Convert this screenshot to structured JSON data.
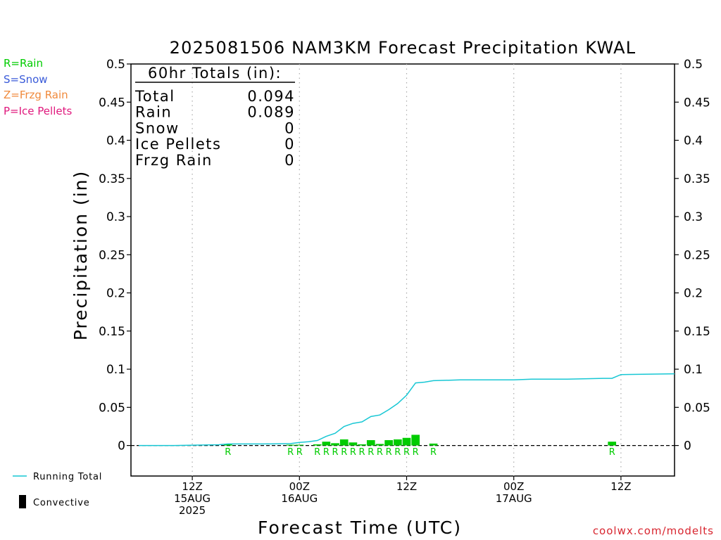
{
  "colors": {
    "rain": "#00cc00",
    "snow": "#3a5bd9",
    "frzg_rain": "#f08a3c",
    "ice_pellets": "#e0197d",
    "running_total": "#17c7d4",
    "convective": "#000000",
    "grid": "#aaaaaa",
    "credit": "#d8252f"
  },
  "precip_types": [
    {
      "label": "R=Rain",
      "color_key": "rain"
    },
    {
      "label": "S=Snow",
      "color_key": "snow"
    },
    {
      "label": "Z=Frzg Rain",
      "color_key": "frzg_rain"
    },
    {
      "label": "P=Ice Pellets",
      "color_key": "ice_pellets"
    }
  ],
  "legend": {
    "running_total": "Running Total",
    "convective": "Convective"
  },
  "totals_box": {
    "header": "60hr Totals (in):",
    "rows": [
      {
        "label": "Total",
        "value": "0.094"
      },
      {
        "label": "Rain",
        "value": "0.089"
      },
      {
        "label": "Snow",
        "value": "0"
      },
      {
        "label": "Ice Pellets",
        "value": "0"
      },
      {
        "label": "Frzg Rain",
        "value": "0"
      }
    ]
  },
  "credit": "coolwx.com/modelts",
  "chart_data": {
    "type": "bar",
    "title": "2025081506 NAM3KM Forecast Precipitation KWAL",
    "xlabel": "Forecast Time (UTC)",
    "ylabel": "Precipitation (in)",
    "ylim": [
      -0.04,
      0.5
    ],
    "xlim": [
      0,
      60
    ],
    "yticks": [
      0,
      0.05,
      0.1,
      0.15,
      0.2,
      0.25,
      0.3,
      0.35,
      0.4,
      0.45,
      0.5
    ],
    "ytick_labels": [
      "0",
      "0.05",
      "0.1",
      "0.15",
      "0.2",
      "0.25",
      "0.3",
      "0.35",
      "0.4",
      "0.45",
      "0.5"
    ],
    "x_unit": "forecast hour",
    "xticks": [
      {
        "x": 6,
        "lines": [
          "12Z",
          "15AUG",
          "2025"
        ]
      },
      {
        "x": 18,
        "lines": [
          "00Z",
          "16AUG"
        ]
      },
      {
        "x": 30,
        "lines": [
          "12Z"
        ]
      },
      {
        "x": 42,
        "lines": [
          "00Z",
          "17AUG"
        ]
      },
      {
        "x": 54,
        "lines": [
          "12Z"
        ]
      }
    ],
    "grid": "vertical dotted at tick times",
    "hourly_precip": [
      {
        "x": 10,
        "value": 0.0015,
        "type": "R"
      },
      {
        "x": 17,
        "value": 0.001,
        "type": "R"
      },
      {
        "x": 18,
        "value": 0.001,
        "type": "R"
      },
      {
        "x": 20,
        "value": 0.0015,
        "type": "R"
      },
      {
        "x": 21,
        "value": 0.005,
        "type": "R"
      },
      {
        "x": 22,
        "value": 0.003,
        "type": "R"
      },
      {
        "x": 23,
        "value": 0.008,
        "type": "R"
      },
      {
        "x": 24,
        "value": 0.004,
        "type": "R"
      },
      {
        "x": 25,
        "value": 0.0015,
        "type": "R"
      },
      {
        "x": 26,
        "value": 0.007,
        "type": "R"
      },
      {
        "x": 27,
        "value": 0.002,
        "type": "R"
      },
      {
        "x": 28,
        "value": 0.007,
        "type": "R"
      },
      {
        "x": 29,
        "value": 0.008,
        "type": "R"
      },
      {
        "x": 30,
        "value": 0.01,
        "type": "R"
      },
      {
        "x": 31,
        "value": 0.014,
        "type": "R"
      },
      {
        "x": 33,
        "value": 0.0025,
        "type": "R"
      },
      {
        "x": 53,
        "value": 0.005,
        "type": "R"
      }
    ],
    "running_total": {
      "x": [
        0,
        4,
        9,
        10,
        14,
        17,
        18,
        19,
        20,
        21,
        22,
        23,
        24,
        25,
        26,
        27,
        28,
        29,
        30,
        31,
        32,
        33,
        36,
        42,
        44,
        48,
        52,
        53,
        54,
        60
      ],
      "y": [
        0,
        0,
        0.001,
        0.002,
        0.002,
        0.0025,
        0.004,
        0.005,
        0.0065,
        0.012,
        0.016,
        0.025,
        0.029,
        0.031,
        0.038,
        0.04,
        0.047,
        0.055,
        0.066,
        0.082,
        0.083,
        0.085,
        0.086,
        0.086,
        0.087,
        0.087,
        0.088,
        0.088,
        0.093,
        0.094
      ]
    }
  }
}
